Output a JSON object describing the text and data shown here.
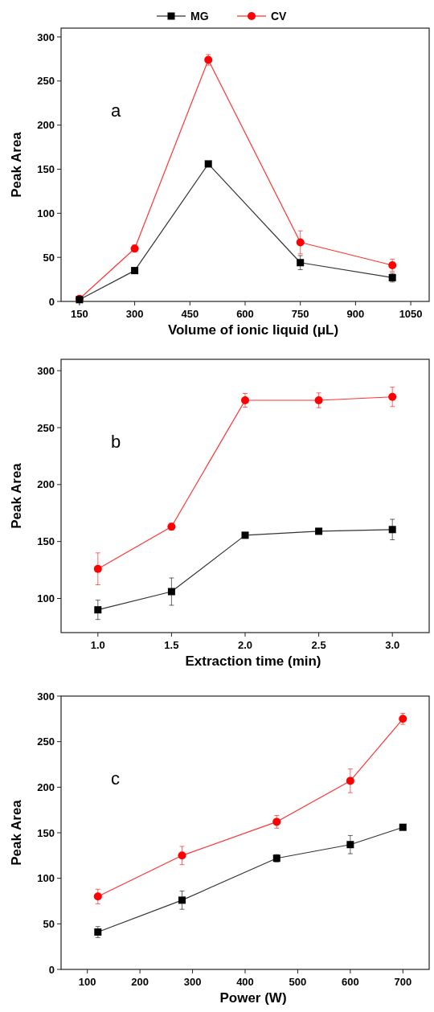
{
  "chart_data": [
    {
      "type": "line",
      "xlabel": "Volume of ionic liquid (μL)",
      "ylabel": "Peak Area",
      "xlim": [
        100,
        1100
      ],
      "xticks": [
        150,
        300,
        450,
        600,
        750,
        900,
        1050
      ],
      "ylim": [
        0,
        310
      ],
      "yticks": [
        0,
        50,
        100,
        150,
        200,
        250,
        300
      ],
      "legend": "top",
      "annotations": [
        "a"
      ],
      "series": [
        {
          "name": "MG",
          "color": "#000000",
          "marker": "square",
          "x": [
            150,
            300,
            500,
            750,
            1000
          ],
          "values": [
            2,
            35,
            156,
            44,
            27
          ],
          "errors": [
            null,
            null,
            null,
            8,
            5
          ]
        },
        {
          "name": "CV",
          "color": "#ff0000",
          "marker": "circle",
          "x": [
            150,
            300,
            500,
            750,
            1000
          ],
          "values": [
            3,
            60,
            274,
            67,
            41
          ],
          "errors": [
            null,
            4,
            6,
            13,
            7
          ]
        }
      ]
    },
    {
      "type": "line",
      "xlabel": "Extraction time (min)",
      "ylabel": "Peak Area",
      "xlim": [
        0.75,
        3.25
      ],
      "xticks": [
        {
          "value": 1,
          "label": "1.0"
        },
        1.5,
        {
          "value": 2,
          "label": "2.0"
        },
        2.5,
        {
          "value": 3,
          "label": "3.0"
        }
      ],
      "ylim": [
        70,
        310
      ],
      "yticks": [
        100,
        150,
        200,
        250,
        300
      ],
      "annotations": [
        "b"
      ],
      "series": [
        {
          "color": "#000000",
          "marker": "square",
          "x": [
            1,
            1.5,
            2,
            2.5,
            3
          ],
          "values": [
            90,
            106,
            155.5,
            159,
            160.5
          ],
          "errors": [
            8.5,
            12,
            null,
            2,
            9
          ]
        },
        {
          "color": "#ff0000",
          "marker": "circle",
          "x": [
            1,
            1.5,
            2,
            2.5,
            3
          ],
          "values": [
            126,
            163,
            274,
            274,
            277
          ],
          "errors": [
            14,
            3,
            6,
            6.5,
            8.5
          ]
        }
      ]
    },
    {
      "type": "line",
      "xlabel": "Power (W)",
      "ylabel": "Peak Area",
      "xlim": [
        50,
        750
      ],
      "xticks": [
        100,
        200,
        300,
        400,
        500,
        600,
        700
      ],
      "ylim": [
        0,
        300
      ],
      "yticks": [
        0,
        50,
        100,
        150,
        200,
        250,
        300
      ],
      "annotations": [
        "c"
      ],
      "series": [
        {
          "color": "#000000",
          "marker": "square",
          "x": [
            120,
            280,
            460,
            600,
            700
          ],
          "values": [
            41,
            76,
            122,
            137,
            156
          ],
          "errors": [
            6,
            10,
            4,
            10,
            null
          ]
        },
        {
          "color": "#ff0000",
          "marker": "circle",
          "x": [
            120,
            280,
            460,
            600,
            700
          ],
          "values": [
            80,
            125,
            162,
            207,
            275
          ],
          "errors": [
            8,
            10,
            7,
            13,
            6
          ]
        }
      ]
    }
  ]
}
